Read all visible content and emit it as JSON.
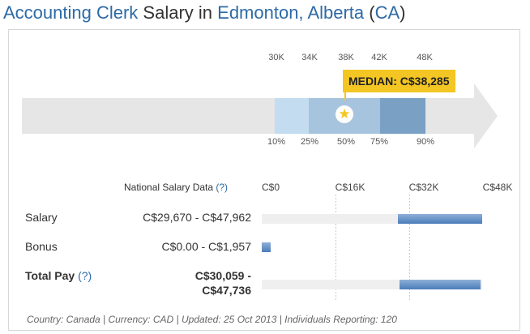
{
  "title": {
    "job": "Accounting Clerk",
    "middle": " Salary in ",
    "location": "Edmonton, Alberta",
    "country_open": " (",
    "country": "CA",
    "country_close": ")"
  },
  "range_chart": {
    "top_ticks": [
      "30K",
      "34K",
      "38K",
      "42K",
      "48K"
    ],
    "percentile_labels": [
      "10%",
      "25%",
      "50%",
      "75%",
      "90%"
    ],
    "median_label": "MEDIAN: C$38,285",
    "median_icon": "star-icon",
    "colors": {
      "band_10_25": "#c3dcef",
      "band_25_50": "#a6c4de",
      "band_50_75": "#a6c4de",
      "band_75_90": "#7aa0c4",
      "arrow": "#e6e6e6",
      "median": "#f3c623"
    }
  },
  "table": {
    "header": "National Salary Data ",
    "header_help": "(?)",
    "axis_ticks": [
      "C$0",
      "C$16K",
      "C$32K",
      "C$48K"
    ],
    "axis_max": 48000,
    "rows": [
      {
        "label": "Salary",
        "value": "C$29,670 - C$47,962",
        "low": 29670,
        "high": 47962
      },
      {
        "label": "Bonus",
        "value": "C$0.00 - C$1,957",
        "low": 0,
        "high": 1957
      },
      {
        "label": "Total Pay ",
        "help": "(?)",
        "value_line1": "C$30,059 -",
        "value_line2": "C$47,736",
        "low": 30059,
        "high": 47736
      }
    ]
  },
  "footer": "Country: Canada | Currency: CAD | Updated: 25 Oct 2013 | Individuals Reporting: 120"
}
